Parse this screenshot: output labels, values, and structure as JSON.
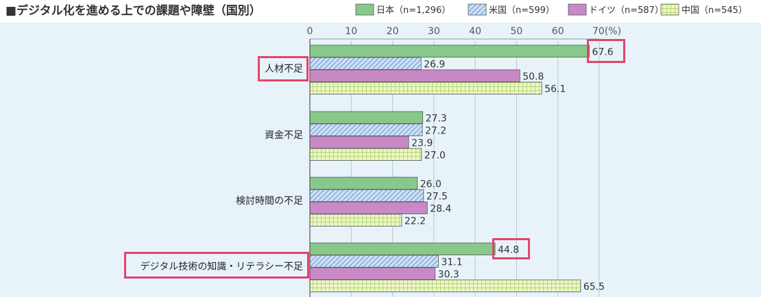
{
  "title": "■デジタル化を進める上での課題や障壁（国別）",
  "colors": {
    "japan": "#88c98b",
    "us": "#9fbfe6",
    "germany": "#c889c6",
    "china": "#d8ee9c",
    "highlight": "#e5426a",
    "background": "#e7f3f9"
  },
  "chart_data": {
    "type": "bar",
    "orientation": "horizontal",
    "title": "■デジタル化を進める上での課題や障壁（国別）",
    "unit": "(%)",
    "xlim": [
      0,
      70
    ],
    "ticks": [
      0,
      10,
      20,
      30,
      40,
      50,
      60,
      70
    ],
    "tick_labels": [
      "0",
      "10",
      "20",
      "30",
      "40",
      "50",
      "60",
      "70(%)"
    ],
    "categories": [
      "人材不足",
      "資金不足",
      "検討時間の不足",
      "デジタル技術の知識・リテラシー不足"
    ],
    "series": [
      {
        "name": "日本（n=1,296）",
        "pattern": "solid",
        "values": [
          67.6,
          27.3,
          26.0,
          44.8
        ]
      },
      {
        "name": "米国（n=599）",
        "pattern": "diagonal",
        "values": [
          26.9,
          27.2,
          27.5,
          31.1
        ]
      },
      {
        "name": "ドイツ（n=587）",
        "pattern": "solid",
        "values": [
          50.8,
          23.9,
          28.4,
          30.3
        ]
      },
      {
        "name": "中国（n=545）",
        "pattern": "grid",
        "values": [
          56.1,
          27.0,
          22.2,
          65.5
        ]
      }
    ],
    "value_labels": [
      [
        "67.6",
        "26.9",
        "50.8",
        "56.1"
      ],
      [
        "27.3",
        "27.2",
        "23.9",
        "27.0"
      ],
      [
        "26.0",
        "27.5",
        "28.4",
        "22.2"
      ],
      [
        "44.8",
        "31.1",
        "30.3",
        "65.5"
      ]
    ],
    "highlighted_categories": [
      "人材不足",
      "デジタル技術の知識・リテラシー不足"
    ],
    "highlighted_values": [
      "67.6",
      "44.8"
    ],
    "legend_position": "top-right"
  }
}
